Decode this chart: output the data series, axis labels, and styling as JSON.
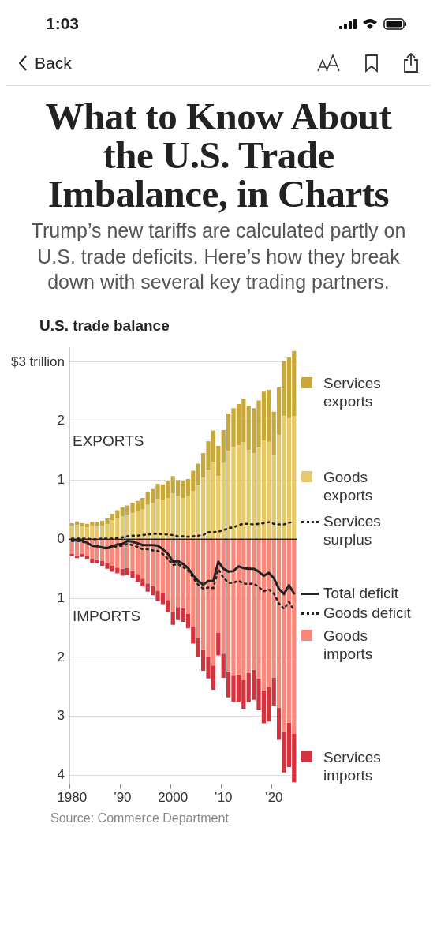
{
  "chart_data": {
    "type": "bar",
    "title": "What to Know About the U.S. Trade Imbalance, in Charts",
    "subtitle": "Trump’s new tariffs are calculated partly on U.S. trade deficits. Here’s how they break down with several key trading partners.",
    "annotations": [
      "1:03",
      "Back",
      "U.S. trade balance",
      "EXPORTS",
      "IMPORTS",
      "Source: Commerce Department"
    ],
    "categories": [
      "1980",
      null,
      null,
      null,
      null,
      null,
      null,
      null,
      null,
      null,
      "’90",
      null,
      null,
      null,
      null,
      null,
      null,
      null,
      null,
      null,
      "2000",
      null,
      null,
      null,
      null,
      null,
      null,
      null,
      null,
      null,
      "’10",
      null,
      null,
      null,
      null,
      null,
      null,
      null,
      null,
      null,
      "’20",
      null,
      null,
      null,
      null
    ],
    "stacked": true,
    "legend": "right",
    "grid": "y",
    "ylim": [
      -4.15,
      3.25
    ],
    "yticks": [
      {
        "value": 3,
        "label": "$3 trillion"
      },
      2,
      1,
      0,
      {
        "value": -1,
        "label": "1"
      },
      {
        "value": -2,
        "label": "2"
      },
      {
        "value": -3,
        "label": "3"
      },
      {
        "value": -4,
        "label": "4"
      }
    ],
    "series": [
      {
        "name": "Goods exports",
        "color": "#e6c96b",
        "values": [
          0.22,
          0.24,
          0.21,
          0.2,
          0.22,
          0.22,
          0.22,
          0.25,
          0.32,
          0.36,
          0.39,
          0.41,
          0.44,
          0.46,
          0.5,
          0.58,
          0.61,
          0.68,
          0.67,
          0.7,
          0.78,
          0.73,
          0.7,
          0.73,
          0.82,
          0.91,
          1.04,
          1.17,
          1.31,
          1.07,
          1.29,
          1.5,
          1.56,
          1.59,
          1.64,
          1.51,
          1.46,
          1.55,
          1.67,
          1.65,
          1.43,
          1.77,
          2.09,
          2.05,
          2.08
        ]
      },
      {
        "name": "Services exports",
        "color": "#c9a83a",
        "values": [
          0.05,
          0.06,
          0.06,
          0.06,
          0.07,
          0.07,
          0.09,
          0.1,
          0.11,
          0.13,
          0.15,
          0.16,
          0.18,
          0.19,
          0.2,
          0.22,
          0.24,
          0.26,
          0.26,
          0.28,
          0.29,
          0.27,
          0.28,
          0.29,
          0.34,
          0.37,
          0.42,
          0.49,
          0.53,
          0.51,
          0.56,
          0.63,
          0.66,
          0.7,
          0.74,
          0.75,
          0.76,
          0.8,
          0.83,
          0.88,
          0.73,
          0.8,
          0.93,
          1.03,
          1.11
        ]
      },
      {
        "name": "Goods imports",
        "color": "#f4897b",
        "values": [
          -0.25,
          -0.27,
          -0.25,
          -0.27,
          -0.33,
          -0.34,
          -0.37,
          -0.41,
          -0.45,
          -0.48,
          -0.5,
          -0.49,
          -0.54,
          -0.59,
          -0.67,
          -0.75,
          -0.8,
          -0.88,
          -0.92,
          -1.03,
          -1.23,
          -1.15,
          -1.17,
          -1.26,
          -1.48,
          -1.68,
          -1.88,
          -1.99,
          -2.14,
          -1.58,
          -1.94,
          -2.24,
          -2.3,
          -2.29,
          -2.39,
          -2.27,
          -2.21,
          -2.36,
          -2.56,
          -2.5,
          -2.35,
          -2.85,
          -3.27,
          -3.11,
          -3.3
        ]
      },
      {
        "name": "Services imports",
        "color": "#d4323d",
        "values": [
          -0.04,
          -0.05,
          -0.05,
          -0.06,
          -0.07,
          -0.07,
          -0.08,
          -0.09,
          -0.1,
          -0.1,
          -0.12,
          -0.12,
          -0.12,
          -0.13,
          -0.13,
          -0.14,
          -0.15,
          -0.17,
          -0.18,
          -0.2,
          -0.22,
          -0.22,
          -0.23,
          -0.25,
          -0.29,
          -0.31,
          -0.35,
          -0.37,
          -0.41,
          -0.39,
          -0.41,
          -0.44,
          -0.45,
          -0.46,
          -0.48,
          -0.49,
          -0.51,
          -0.54,
          -0.56,
          -0.59,
          -0.47,
          -0.55,
          -0.68,
          -0.75,
          -0.82
        ]
      },
      {
        "name": "Services surplus",
        "type": "line",
        "line_style": "dotted",
        "color": "#222222",
        "values": [
          0.01,
          0.01,
          0.01,
          0.01,
          0,
          0,
          0.01,
          0.01,
          0.01,
          0.02,
          0.03,
          0.05,
          0.06,
          0.06,
          0.07,
          0.08,
          0.09,
          0.09,
          0.08,
          0.08,
          0.07,
          0.05,
          0.05,
          0.04,
          0.05,
          0.06,
          0.07,
          0.12,
          0.12,
          0.13,
          0.15,
          0.19,
          0.2,
          0.24,
          0.26,
          0.26,
          0.25,
          0.26,
          0.27,
          0.29,
          0.26,
          0.25,
          0.25,
          0.28,
          0.29
        ]
      },
      {
        "name": "Total deficit",
        "type": "line",
        "line_style": "solid",
        "color": "#222222",
        "values": [
          -0.02,
          -0.02,
          -0.02,
          -0.06,
          -0.11,
          -0.12,
          -0.14,
          -0.15,
          -0.12,
          -0.09,
          -0.08,
          -0.03,
          -0.04,
          -0.07,
          -0.1,
          -0.1,
          -0.1,
          -0.11,
          -0.17,
          -0.25,
          -0.38,
          -0.37,
          -0.42,
          -0.49,
          -0.61,
          -0.71,
          -0.77,
          -0.71,
          -0.71,
          -0.38,
          -0.5,
          -0.55,
          -0.54,
          -0.46,
          -0.49,
          -0.5,
          -0.5,
          -0.55,
          -0.62,
          -0.57,
          -0.66,
          -0.84,
          -0.93,
          -0.78,
          -0.92
        ]
      },
      {
        "name": "Goods deficit",
        "type": "line",
        "line_style": "dotted",
        "color": "#222222",
        "values": [
          -0.03,
          -0.03,
          -0.04,
          -0.07,
          -0.11,
          -0.12,
          -0.15,
          -0.16,
          -0.13,
          -0.12,
          -0.11,
          -0.08,
          -0.1,
          -0.13,
          -0.17,
          -0.17,
          -0.19,
          -0.2,
          -0.25,
          -0.33,
          -0.44,
          -0.42,
          -0.47,
          -0.53,
          -0.65,
          -0.77,
          -0.84,
          -0.82,
          -0.83,
          -0.51,
          -0.65,
          -0.74,
          -0.74,
          -0.7,
          -0.75,
          -0.76,
          -0.75,
          -0.81,
          -0.88,
          -0.85,
          -0.92,
          -1.09,
          -1.18,
          -1.06,
          -1.21
        ]
      }
    ]
  }
}
